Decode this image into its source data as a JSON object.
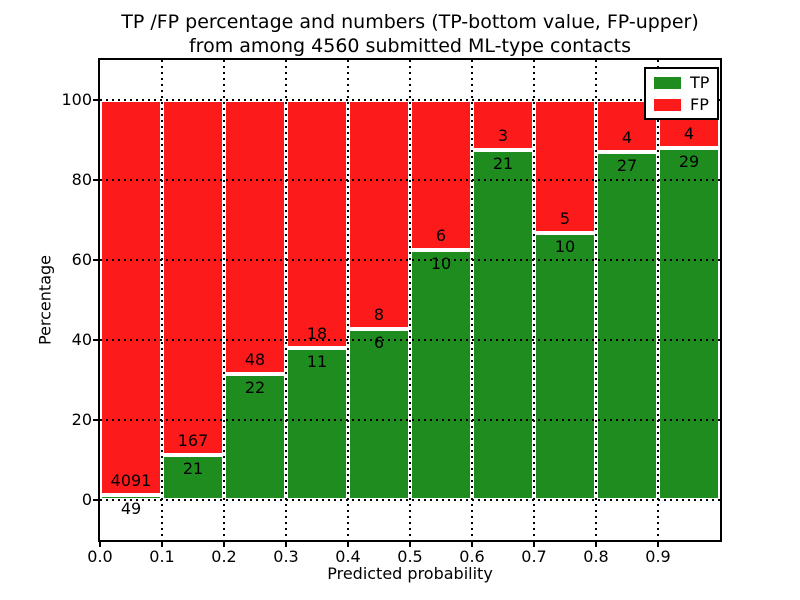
{
  "figure": {
    "title_line1": "TP /FP percentage and numbers (TP-bottom value, FP-upper)",
    "title_line2": "from among 4560 submitted ML-type contacts"
  },
  "chart_data": {
    "type": "bar",
    "stacked": true,
    "normalized_to_percent": true,
    "title": "TP /FP percentage and numbers (TP-bottom value, FP-upper) from among 4560 submitted ML-type contacts",
    "xlabel": "Predicted probability",
    "ylabel": "Percentage",
    "xlim": [
      0.0,
      1.0
    ],
    "ylim": [
      -10,
      110
    ],
    "grid": "dotted black",
    "bar_width": 0.1,
    "bin_starts": [
      0.0,
      0.1,
      0.2,
      0.3,
      0.4,
      0.5,
      0.6,
      0.7,
      0.8,
      0.9
    ],
    "xtick_values": [
      0.0,
      0.1,
      0.2,
      0.3,
      0.4,
      0.5,
      0.6,
      0.7,
      0.8,
      0.9
    ],
    "xtick_labels": [
      "0.0",
      "0.1",
      "0.2",
      "0.3",
      "0.4",
      "0.5",
      "0.6",
      "0.7",
      "0.8",
      "0.9"
    ],
    "ytick_values": [
      0,
      20,
      40,
      60,
      80,
      100
    ],
    "ytick_labels": [
      "0",
      "20",
      "40",
      "60",
      "80",
      "100"
    ],
    "series": [
      {
        "name": "TP",
        "color": "#1e8c1e",
        "counts": [
          49,
          21,
          22,
          11,
          6,
          10,
          21,
          10,
          27,
          29
        ]
      },
      {
        "name": "FP",
        "color": "#fc1a1a",
        "counts": [
          4091,
          167,
          48,
          18,
          8,
          6,
          3,
          5,
          4,
          4
        ]
      }
    ],
    "tp_percent": [
      1.2,
      11.2,
      31.4,
      37.9,
      42.9,
      62.5,
      87.5,
      66.7,
      87.1,
      87.9
    ],
    "total_contacts": 4560,
    "legend": {
      "position": "upper right",
      "entries": [
        {
          "label": "TP",
          "color": "#1e8c1e"
        },
        {
          "label": "FP",
          "color": "#fc1a1a"
        }
      ]
    }
  }
}
